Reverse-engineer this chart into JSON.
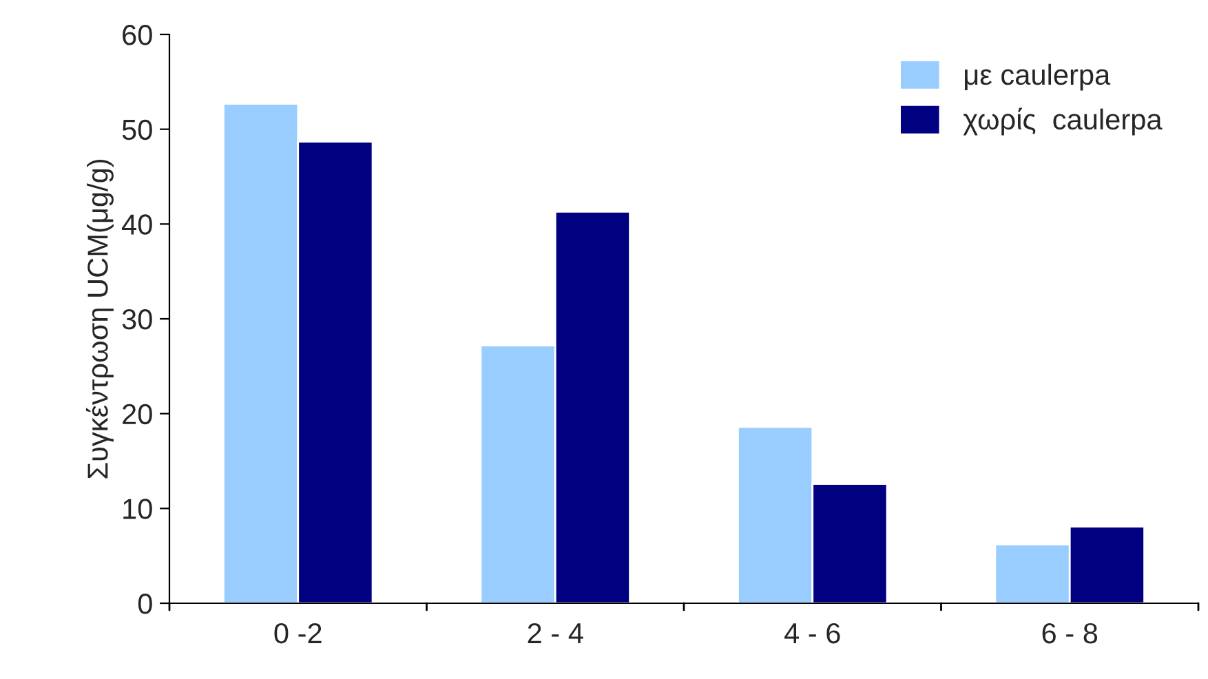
{
  "chart_data": {
    "type": "bar",
    "ylabel": "Συγκέντρωση UCM(μg/g)",
    "categories": [
      "0 -2",
      "2 - 4",
      "4 - 6",
      "6 - 8"
    ],
    "series": [
      {
        "name": "με caulerpa",
        "color": "#99ccff",
        "values": [
          52.7,
          27.2,
          18.6,
          6.2
        ]
      },
      {
        "name": "χωρίς  caulerpa",
        "color": "#000080",
        "values": [
          48.7,
          41.3,
          12.6,
          8.1
        ]
      }
    ],
    "ylim": [
      0,
      60
    ],
    "yticks": [
      0,
      10,
      20,
      30,
      40,
      50,
      60
    ],
    "grid": false,
    "legend": "top right"
  }
}
